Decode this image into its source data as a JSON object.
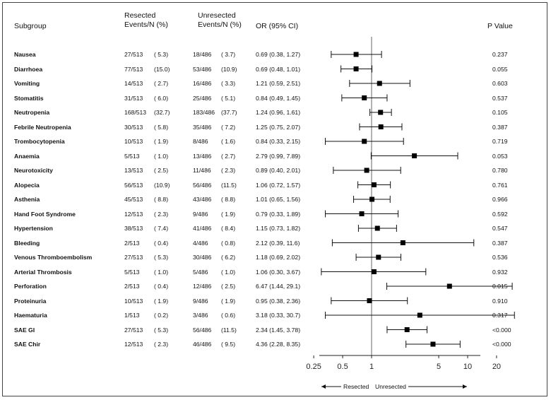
{
  "headers": {
    "subgroup": "Subgroup",
    "resected_line1": "Resected",
    "resected_line2": "Events/N (%)",
    "unresected_line1": "Unresected",
    "unresected_line2": "Events/N (%)",
    "or": "OR (95% CI)",
    "p": "P Value"
  },
  "chart_data": {
    "type": "forest",
    "x_scale": "log",
    "xlim": [
      0.2,
      30
    ],
    "reference_line": 1,
    "x_ticks": [
      0.25,
      0.5,
      1,
      5,
      10,
      20
    ],
    "x_tick_labels": [
      "0.25",
      "0.5",
      "1",
      "5",
      "10",
      "20"
    ],
    "direction_left": "Resected",
    "direction_right": "Unresected",
    "rows": [
      {
        "name": "Nausea",
        "res_events": "27/513",
        "res_pct": "( 5.3)",
        "unres_events": "18/486",
        "unres_pct": "( 3.7)",
        "or_text": "0.69 (0.38, 1.27)",
        "or": 0.69,
        "lo": 0.38,
        "hi": 1.27,
        "p": "0.237"
      },
      {
        "name": "Diarrhoea",
        "res_events": "77/513",
        "res_pct": "(15.0)",
        "unres_events": "53/486",
        "unres_pct": "(10.9)",
        "or_text": "0.69 (0.48, 1.01)",
        "or": 0.69,
        "lo": 0.48,
        "hi": 1.01,
        "p": "0.055"
      },
      {
        "name": "Vomiting",
        "res_events": "14/513",
        "res_pct": "( 2.7)",
        "unres_events": "16/486",
        "unres_pct": "( 3.3)",
        "or_text": "1.21 (0.59, 2.51)",
        "or": 1.21,
        "lo": 0.59,
        "hi": 2.51,
        "p": "0.603"
      },
      {
        "name": "Stomatitis",
        "res_events": "31/513",
        "res_pct": "( 6.0)",
        "unres_events": "25/486",
        "unres_pct": "( 5.1)",
        "or_text": "0.84 (0.49, 1.45)",
        "or": 0.84,
        "lo": 0.49,
        "hi": 1.45,
        "p": "0.537"
      },
      {
        "name": "Neutropenia",
        "res_events": "168/513",
        "res_pct": "(32.7)",
        "unres_events": "183/486",
        "unres_pct": "(37.7)",
        "or_text": "1.24 (0.96, 1.61)",
        "or": 1.24,
        "lo": 0.96,
        "hi": 1.61,
        "p": "0.105"
      },
      {
        "name": "Febrile Neutropenia",
        "res_events": "30/513",
        "res_pct": "( 5.8)",
        "unres_events": "35/486",
        "unres_pct": "( 7.2)",
        "or_text": "1.25 (0.75, 2.07)",
        "or": 1.25,
        "lo": 0.75,
        "hi": 2.07,
        "p": "0.387"
      },
      {
        "name": "Trombocytopenia",
        "res_events": "10/513",
        "res_pct": "( 1.9)",
        "unres_events": "8/486",
        "unres_pct": "( 1.6)",
        "or_text": "0.84 (0.33, 2.15)",
        "or": 0.84,
        "lo": 0.33,
        "hi": 2.15,
        "p": "0.719"
      },
      {
        "name": "Anaemia",
        "res_events": "5/513",
        "res_pct": "( 1.0)",
        "unres_events": "13/486",
        "unres_pct": "( 2.7)",
        "or_text": "2.79 (0.99, 7.89)",
        "or": 2.79,
        "lo": 0.99,
        "hi": 7.89,
        "p": "0.053"
      },
      {
        "name": "Neurotoxicity",
        "res_events": "13/513",
        "res_pct": "( 2.5)",
        "unres_events": "11/486",
        "unres_pct": "( 2.3)",
        "or_text": "0.89 (0.40, 2.01)",
        "or": 0.89,
        "lo": 0.4,
        "hi": 2.01,
        "p": "0.780"
      },
      {
        "name": "Alopecia",
        "res_events": "56/513",
        "res_pct": "(10.9)",
        "unres_events": "56/486",
        "unres_pct": "(11.5)",
        "or_text": "1.06 (0.72, 1.57)",
        "or": 1.06,
        "lo": 0.72,
        "hi": 1.57,
        "p": "0.761"
      },
      {
        "name": "Asthenia",
        "res_events": "45/513",
        "res_pct": "( 8.8)",
        "unres_events": "43/486",
        "unres_pct": "( 8.8)",
        "or_text": "1.01 (0.65, 1.56)",
        "or": 1.01,
        "lo": 0.65,
        "hi": 1.56,
        "p": "0.966"
      },
      {
        "name": "Hand Foot Syndrome",
        "res_events": "12/513",
        "res_pct": "( 2.3)",
        "unres_events": "9/486",
        "unres_pct": "( 1.9)",
        "or_text": "0.79 (0.33, 1.89)",
        "or": 0.79,
        "lo": 0.33,
        "hi": 1.89,
        "p": "0.592"
      },
      {
        "name": "Hypertension",
        "res_events": "38/513",
        "res_pct": "( 7.4)",
        "unres_events": "41/486",
        "unres_pct": "( 8.4)",
        "or_text": "1.15 (0.73, 1.82)",
        "or": 1.15,
        "lo": 0.73,
        "hi": 1.82,
        "p": "0.547"
      },
      {
        "name": "Bleeding",
        "res_events": "2/513",
        "res_pct": "( 0.4)",
        "unres_events": "4/486",
        "unres_pct": "( 0.8)",
        "or_text": "2.12 (0.39, 11.6)",
        "or": 2.12,
        "lo": 0.39,
        "hi": 11.6,
        "p": "0.387"
      },
      {
        "name": "Venous  Thromboembolism",
        "res_events": "27/513",
        "res_pct": "( 5.3)",
        "unres_events": "30/486",
        "unres_pct": "( 6.2)",
        "or_text": "1.18 (0.69, 2.02)",
        "or": 1.18,
        "lo": 0.69,
        "hi": 2.02,
        "p": "0.536"
      },
      {
        "name": "Arterial  Thrombosis",
        "res_events": "5/513",
        "res_pct": "( 1.0)",
        "unres_events": "5/486",
        "unres_pct": "( 1.0)",
        "or_text": "1.06 (0.30, 3.67)",
        "or": 1.06,
        "lo": 0.3,
        "hi": 3.67,
        "p": "0.932"
      },
      {
        "name": "Perforation",
        "res_events": "2/513",
        "res_pct": "( 0.4)",
        "unres_events": "12/486",
        "unres_pct": "( 2.5)",
        "or_text": "6.47 (1.44, 29.1)",
        "or": 6.47,
        "lo": 1.44,
        "hi": 29.1,
        "p": "0.015"
      },
      {
        "name": "Proteinuria",
        "res_events": "10/513",
        "res_pct": "( 1.9)",
        "unres_events": "9/486",
        "unres_pct": "( 1.9)",
        "or_text": "0.95 (0.38, 2.36)",
        "or": 0.95,
        "lo": 0.38,
        "hi": 2.36,
        "p": "0.910"
      },
      {
        "name": "Haematuria",
        "res_events": "1/513",
        "res_pct": "( 0.2)",
        "unres_events": "3/486",
        "unres_pct": "( 0.6)",
        "or_text": "3.18 (0.33, 30.7)",
        "or": 3.18,
        "lo": 0.33,
        "hi": 30.7,
        "p": "0.317"
      },
      {
        "name": "SAE GI",
        "res_events": "27/513",
        "res_pct": "( 5.3)",
        "unres_events": "56/486",
        "unres_pct": "(11.5)",
        "or_text": "2.34 (1.45, 3.78)",
        "or": 2.34,
        "lo": 1.45,
        "hi": 3.78,
        "p": "<0.000"
      },
      {
        "name": "SAE Chir",
        "res_events": "12/513",
        "res_pct": "( 2.3)",
        "unres_events": "46/486",
        "unres_pct": "( 9.5)",
        "or_text": "4.36 (2.28, 8.35)",
        "or": 4.36,
        "lo": 2.28,
        "hi": 8.35,
        "p": "<0.000"
      }
    ]
  }
}
